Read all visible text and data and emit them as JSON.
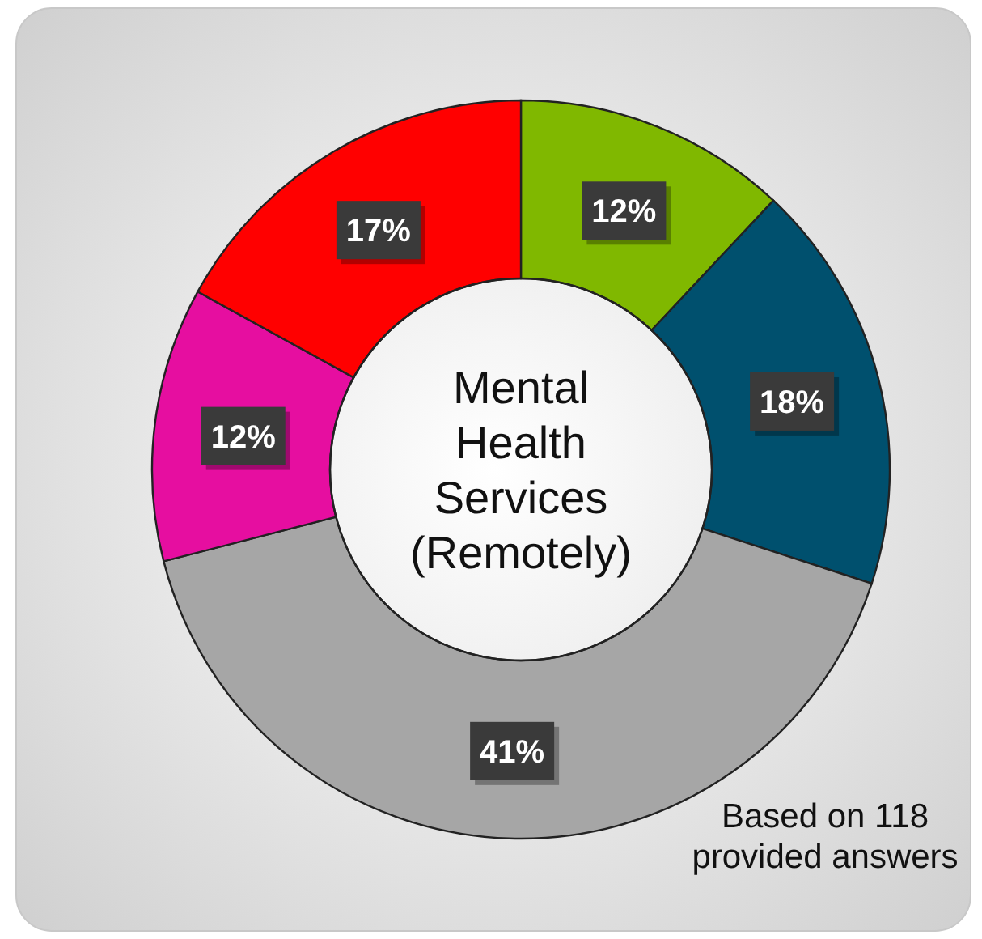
{
  "chart_data": {
    "type": "donut",
    "title": "Mental Health Services (Remotely)",
    "categories": [
      null,
      null,
      null,
      null,
      null
    ],
    "values": [
      12,
      18,
      41,
      12,
      17
    ],
    "colors": [
      "#80b800",
      "#00506e",
      "#a6a6a6",
      "#e60ea0",
      "#ff0000"
    ],
    "value_labels": [
      "12%",
      "18%",
      "41%",
      "12%",
      "17%"
    ],
    "annotations": [
      "Based on 118 provided answers"
    ]
  }
}
